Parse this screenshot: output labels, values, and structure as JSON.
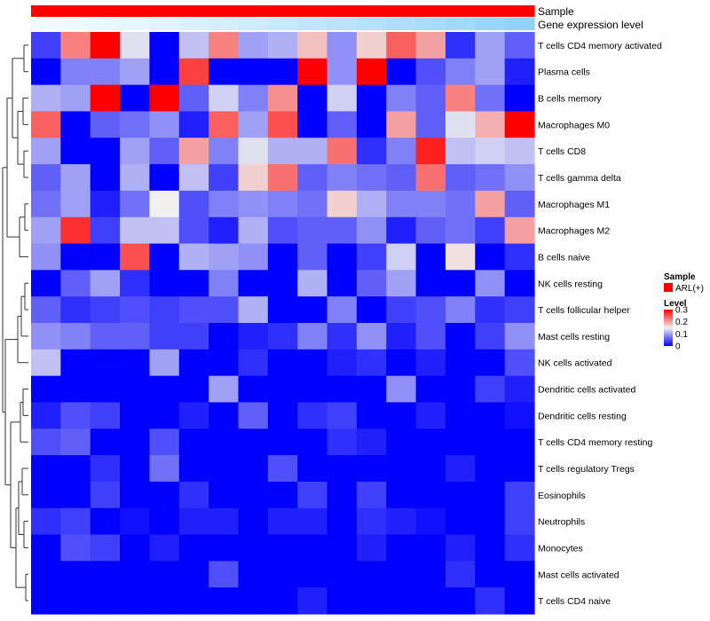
{
  "chart_data": {
    "type": "heatmap",
    "annotation_labels": [
      "Sample",
      "Gene expression level"
    ],
    "sample_annotation": "ARL(+)",
    "gene_expression_level": [
      0.02,
      0.05,
      0.08,
      0.12,
      0.16,
      0.22,
      0.28,
      0.34,
      0.4,
      0.46,
      0.52,
      0.58,
      0.64,
      0.7,
      0.76,
      0.84,
      0.92
    ],
    "rows": [
      "T cells CD4 memory activated",
      "Plasma cells",
      "B cells memory",
      "Macrophages M0",
      "T cells CD8",
      "T cells gamma delta",
      "Macrophages M1",
      "Macrophages M2",
      "B cells naive",
      "NK cells resting",
      "T cells follicular helper",
      "Mast cells resting",
      "NK cells activated",
      "Dendritic cells activated",
      "Dendritic cells resting",
      "T cells CD4 memory resting",
      "T cells regulatory  Tregs",
      "Eosinophils",
      "Neutrophils",
      "Monocytes",
      "Mast cells activated",
      "T cells CD4 naive"
    ],
    "values": [
      [
        0.04,
        0.22,
        0.3,
        0.14,
        0.0,
        0.12,
        0.22,
        0.1,
        0.11,
        0.18,
        0.09,
        0.17,
        0.24,
        0.2,
        0.03,
        0.1,
        0.06
      ],
      [
        0.0,
        0.08,
        0.08,
        0.1,
        0.0,
        0.26,
        0.0,
        0.0,
        0.0,
        0.3,
        0.09,
        0.3,
        0.0,
        0.05,
        0.08,
        0.1,
        0.02
      ],
      [
        0.11,
        0.1,
        0.3,
        0.0,
        0.3,
        0.06,
        0.13,
        0.08,
        0.21,
        0.0,
        0.13,
        0.0,
        0.08,
        0.06,
        0.22,
        0.07,
        0.0
      ],
      [
        0.24,
        0.0,
        0.06,
        0.07,
        0.09,
        0.02,
        0.24,
        0.1,
        0.25,
        0.0,
        0.06,
        0.0,
        0.2,
        0.06,
        0.14,
        0.19,
        0.3
      ],
      [
        0.1,
        0.0,
        0.0,
        0.1,
        0.06,
        0.2,
        0.08,
        0.14,
        0.11,
        0.11,
        0.23,
        0.03,
        0.08,
        0.28,
        0.12,
        0.13,
        0.12
      ],
      [
        0.06,
        0.1,
        0.0,
        0.11,
        0.0,
        0.12,
        0.04,
        0.17,
        0.23,
        0.06,
        0.08,
        0.07,
        0.06,
        0.23,
        0.06,
        0.07,
        0.09
      ],
      [
        0.07,
        0.1,
        0.02,
        0.07,
        0.15,
        0.05,
        0.08,
        0.09,
        0.08,
        0.07,
        0.17,
        0.11,
        0.08,
        0.08,
        0.07,
        0.2,
        0.06
      ],
      [
        0.1,
        0.27,
        0.04,
        0.12,
        0.12,
        0.05,
        0.02,
        0.11,
        0.05,
        0.06,
        0.06,
        0.09,
        0.02,
        0.06,
        0.07,
        0.04,
        0.2
      ],
      [
        0.09,
        0.0,
        0.0,
        0.25,
        0.0,
        0.11,
        0.1,
        0.09,
        0.0,
        0.06,
        0.0,
        0.04,
        0.13,
        0.0,
        0.16,
        0.0,
        0.03
      ],
      [
        0.0,
        0.06,
        0.1,
        0.03,
        0.0,
        0.0,
        0.08,
        0.0,
        0.0,
        0.11,
        0.0,
        0.06,
        0.1,
        0.0,
        0.0,
        0.09,
        0.0
      ],
      [
        0.06,
        0.03,
        0.04,
        0.05,
        0.04,
        0.05,
        0.05,
        0.11,
        0.0,
        0.0,
        0.08,
        0.0,
        0.04,
        0.05,
        0.08,
        0.03,
        0.04
      ],
      [
        0.09,
        0.08,
        0.06,
        0.06,
        0.04,
        0.04,
        0.0,
        0.02,
        0.03,
        0.08,
        0.03,
        0.09,
        0.02,
        0.05,
        0.0,
        0.04,
        0.09
      ],
      [
        0.12,
        0.0,
        0.0,
        0.0,
        0.1,
        0.0,
        0.0,
        0.03,
        0.0,
        0.0,
        0.02,
        0.03,
        0.0,
        0.02,
        0.0,
        0.0,
        0.05
      ],
      [
        0.0,
        0.0,
        0.0,
        0.0,
        0.0,
        0.0,
        0.1,
        0.0,
        0.0,
        0.0,
        0.0,
        0.0,
        0.09,
        0.0,
        0.0,
        0.04,
        0.02
      ],
      [
        0.02,
        0.05,
        0.04,
        0.0,
        0.0,
        0.02,
        0.0,
        0.06,
        0.0,
        0.03,
        0.04,
        0.0,
        0.0,
        0.02,
        0.0,
        0.0,
        0.01
      ],
      [
        0.05,
        0.06,
        0.0,
        0.0,
        0.05,
        0.0,
        0.0,
        0.0,
        0.0,
        0.0,
        0.03,
        0.02,
        0.0,
        0.0,
        0.0,
        0.0,
        0.0
      ],
      [
        0.0,
        0.0,
        0.03,
        0.0,
        0.07,
        0.0,
        0.0,
        0.0,
        0.05,
        0.0,
        0.0,
        0.0,
        0.0,
        0.0,
        0.02,
        0.0,
        0.0
      ],
      [
        0.0,
        0.0,
        0.04,
        0.0,
        0.0,
        0.03,
        0.0,
        0.0,
        0.0,
        0.04,
        0.0,
        0.04,
        0.0,
        0.0,
        0.0,
        0.0,
        0.04
      ],
      [
        0.03,
        0.04,
        0.0,
        0.01,
        0.0,
        0.02,
        0.02,
        0.0,
        0.02,
        0.02,
        0.0,
        0.03,
        0.02,
        0.01,
        0.0,
        0.0,
        0.04
      ],
      [
        0.0,
        0.05,
        0.04,
        0.0,
        0.02,
        0.0,
        0.0,
        0.0,
        0.0,
        0.0,
        0.0,
        0.02,
        0.0,
        0.0,
        0.02,
        0.0,
        0.03
      ],
      [
        0.0,
        0.0,
        0.0,
        0.0,
        0.0,
        0.0,
        0.05,
        0.0,
        0.0,
        0.0,
        0.0,
        0.0,
        0.0,
        0.0,
        0.03,
        0.0,
        0.0
      ],
      [
        0.0,
        0.0,
        0.0,
        0.0,
        0.0,
        0.0,
        0.0,
        0.0,
        0.0,
        0.02,
        0.0,
        0.0,
        0.0,
        0.0,
        0.0,
        0.03,
        0.0
      ]
    ],
    "legend": {
      "sample_title": "Sample",
      "sample_entry": "ARL(+)",
      "level_title": "Level",
      "level_ticks": [
        "0.3",
        "0.2",
        "0.1",
        "0"
      ],
      "level_values": [
        0.3,
        0.2,
        0.1,
        0
      ]
    },
    "color_scale": {
      "low": "#0000ff",
      "mid": "#f0f0f0",
      "high": "#ff0000",
      "range": [
        0,
        0.3
      ]
    },
    "sample_color": "#ff0000",
    "gene_level_colors": {
      "low": "#f2fbfe",
      "high": "#87cefa"
    },
    "dendrogram": "left (rows clustered)"
  }
}
